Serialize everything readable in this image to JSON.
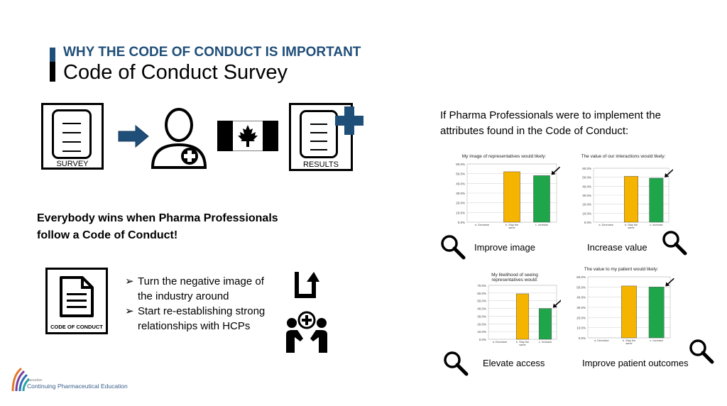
{
  "header": {
    "subtitle": "WHY THE CODE OF CONDUCT IS IMPORTANT",
    "title": "Code of Conduct Survey"
  },
  "flow": {
    "survey_label": "SURVEY",
    "results_label": "RESULTS",
    "icons": [
      "document-icon",
      "arrow-right-icon",
      "professional-icon",
      "canada-flag-icon",
      "results-document-icon",
      "plus-icon"
    ]
  },
  "wins_text": "Everybody wins when Pharma Professionals follow a Code of Conduct!",
  "code_box_label": "CODE OF CONDUCT",
  "bullets": [
    "Turn the negative image of the industry around",
    "Start re-establishing strong relationships with HCPs"
  ],
  "intro_text": "If Pharma Professionals were to implement the attributes found in the Code of Conduct:",
  "charts": {
    "improve_image": {
      "title": "My image of representatives would likely:",
      "caption": "Improve image"
    },
    "increase_value": {
      "title": "The value of our interactions would likely:",
      "caption": "Increase value"
    },
    "elevate_access": {
      "title": "My likelihood of seeing representatives would:",
      "caption": "Elevate access"
    },
    "patient_outcomes": {
      "title": "The value to my patient would likely:",
      "caption": "Improve patient outcomes"
    }
  },
  "chart_data": [
    {
      "type": "bar",
      "title": "My image of representatives would likely:",
      "categories": [
        "a. Decrease",
        "b. Stay the same",
        "c. Increase"
      ],
      "values": [
        0,
        52,
        48
      ],
      "ylim": [
        0,
        60
      ],
      "yticks": [
        "0.0%",
        "10.0%",
        "20.0%",
        "30.0%",
        "40.0%",
        "50.0%",
        "60.0%"
      ],
      "colors": [
        "#f5b400",
        "#f5b400",
        "#1fa64a"
      ]
    },
    {
      "type": "bar",
      "title": "The value of our interactions would likely:",
      "categories": [
        "a. Decrease",
        "b. Stay the same",
        "c. Increase"
      ],
      "values": [
        0,
        51,
        49
      ],
      "ylim": [
        0,
        60
      ],
      "yticks": [
        "0.0%",
        "10.0%",
        "20.0%",
        "30.0%",
        "40.0%",
        "50.0%",
        "60.0%"
      ],
      "colors": [
        "#f5b400",
        "#f5b400",
        "#1fa64a"
      ]
    },
    {
      "type": "bar",
      "title": "My likelihood of seeing representatives would:",
      "categories": [
        "a. Decrease",
        "b. Stay the same",
        "c. Increase"
      ],
      "values": [
        0,
        59,
        40
      ],
      "ylim": [
        0,
        70
      ],
      "yticks": [
        "0.0%",
        "10.0%",
        "20.0%",
        "30.0%",
        "40.0%",
        "50.0%",
        "60.0%",
        "70.0%"
      ],
      "colors": [
        "#f5b400",
        "#f5b400",
        "#1fa64a"
      ]
    },
    {
      "type": "bar",
      "title": "The value to my patient would likely:",
      "categories": [
        "a. Decrease",
        "b. Stay the same",
        "c. Increase"
      ],
      "values": [
        0,
        51,
        50
      ],
      "ylim": [
        0,
        60
      ],
      "yticks": [
        "0.0%",
        "10.0%",
        "20.0%",
        "30.0%",
        "40.0%",
        "50.0%",
        "60.0%"
      ],
      "colors": [
        "#f5b400",
        "#f5b400",
        "#1fa64a"
      ]
    }
  ],
  "logo": {
    "small_text": "Canadian",
    "text": "Continuing Pharmaceutical Education"
  },
  "colors": {
    "brand_blue": "#1f4e79",
    "bar_yellow": "#f5b400",
    "bar_green": "#1fa64a",
    "canada_red": "#000000"
  }
}
